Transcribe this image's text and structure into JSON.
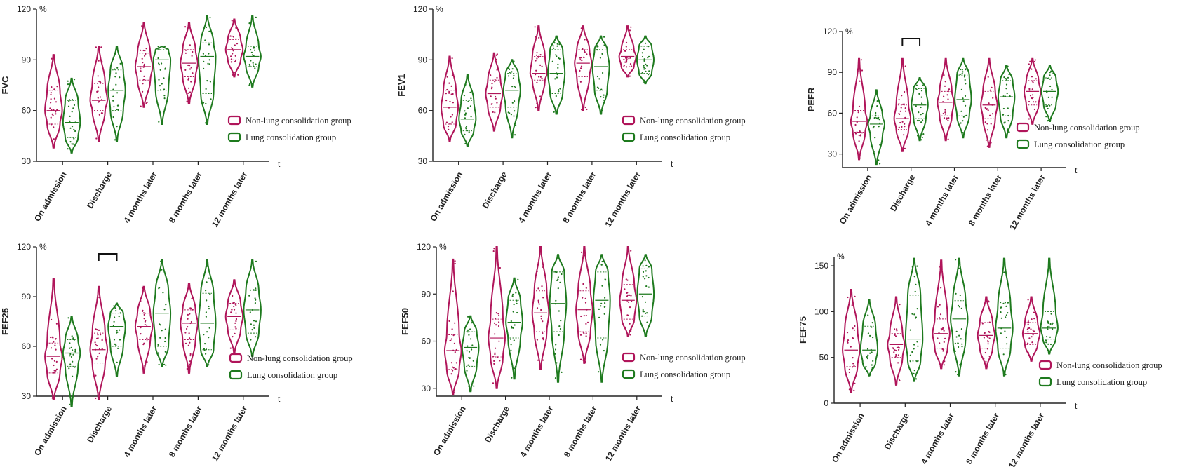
{
  "legend": {
    "series_a": "Non-lung consolidation group",
    "series_b": "Lung consolidation group"
  },
  "colors": {
    "series_a": "#b0155a",
    "series_b": "#1e7a1e"
  },
  "axis_t_label": "t",
  "unit_label": "%",
  "chart_data": [
    {
      "type": "violin",
      "ylabel": "FVC",
      "ylim": [
        30,
        120
      ],
      "yticks": [
        30,
        60,
        90,
        120
      ],
      "categories": [
        "On admission",
        "Discharge",
        "4 months later",
        "8 months later",
        "12 months later"
      ],
      "series": [
        {
          "name": "Non-lung consolidation group",
          "min": [
            38,
            42,
            62,
            64,
            80
          ],
          "q1": [
            52,
            60,
            78,
            80,
            90
          ],
          "median": [
            60,
            66,
            86,
            88,
            96
          ],
          "q3": [
            72,
            76,
            94,
            96,
            102
          ],
          "max": [
            93,
            98,
            112,
            112,
            114
          ]
        },
        {
          "name": "Lung consolidation group",
          "min": [
            35,
            42,
            52,
            52,
            74
          ],
          "q1": [
            44,
            60,
            72,
            70,
            86
          ],
          "median": [
            53,
            72,
            90,
            92,
            92
          ],
          "q3": [
            66,
            84,
            96,
            100,
            98
          ],
          "max": [
            79,
            98,
            98,
            116,
            116
          ]
        }
      ],
      "significance": []
    },
    {
      "type": "violin",
      "ylabel": "FEV1",
      "ylim": [
        30,
        120
      ],
      "yticks": [
        30,
        60,
        90,
        120
      ],
      "categories": [
        "On admission",
        "Discharge",
        "4 months later",
        "8 months later",
        "12 months later"
      ],
      "series": [
        {
          "name": "Non-lung consolidation group",
          "min": [
            42,
            48,
            60,
            60,
            80
          ],
          "q1": [
            52,
            62,
            78,
            80,
            86
          ],
          "median": [
            62,
            70,
            82,
            88,
            92
          ],
          "q3": [
            72,
            78,
            92,
            96,
            96
          ],
          "max": [
            92,
            94,
            110,
            110,
            110
          ]
        },
        {
          "name": "Lung consolidation group",
          "min": [
            39,
            44,
            58,
            58,
            76
          ],
          "q1": [
            48,
            62,
            70,
            72,
            82
          ],
          "median": [
            55,
            72,
            82,
            86,
            90
          ],
          "q3": [
            66,
            82,
            96,
            96,
            98
          ],
          "max": [
            81,
            90,
            104,
            104,
            104
          ]
        }
      ],
      "significance": []
    },
    {
      "type": "violin",
      "ylabel": "PEFR",
      "ylim": [
        20,
        120
      ],
      "yticks": [
        30,
        60,
        90,
        120
      ],
      "categories": [
        "On admission",
        "Discharge",
        "4 months later",
        "8 months later",
        "12 months later"
      ],
      "series": [
        {
          "name": "Non-lung consolidation group",
          "min": [
            26,
            32,
            40,
            35,
            52
          ],
          "q1": [
            46,
            48,
            58,
            56,
            66
          ],
          "median": [
            54,
            56,
            68,
            66,
            76
          ],
          "q3": [
            62,
            66,
            76,
            76,
            84
          ],
          "max": [
            100,
            100,
            100,
            100,
            100
          ]
        },
        {
          "name": "Lung consolidation group",
          "min": [
            22,
            40,
            42,
            42,
            54
          ],
          "q1": [
            44,
            56,
            58,
            58,
            66
          ],
          "median": [
            52,
            66,
            70,
            72,
            76
          ],
          "q3": [
            58,
            78,
            88,
            84,
            86
          ],
          "max": [
            77,
            86,
            100,
            95,
            95
          ]
        }
      ],
      "significance": [
        1
      ]
    },
    {
      "type": "violin",
      "ylabel": "FEF25",
      "ylim": [
        30,
        120
      ],
      "yticks": [
        30,
        60,
        90,
        120
      ],
      "categories": [
        "On admission",
        "Discharge",
        "4 months later",
        "8 months later",
        "12 months later"
      ],
      "series": [
        {
          "name": "Non-lung consolidation group",
          "min": [
            28,
            28,
            44,
            44,
            56
          ],
          "q1": [
            44,
            50,
            64,
            64,
            70
          ],
          "median": [
            54,
            58,
            72,
            74,
            78
          ],
          "q3": [
            62,
            68,
            80,
            82,
            86
          ],
          "max": [
            101,
            96,
            96,
            98,
            100
          ]
        },
        {
          "name": "Lung consolidation group",
          "min": [
            24,
            42,
            48,
            48,
            54
          ],
          "q1": [
            48,
            60,
            60,
            58,
            68
          ],
          "median": [
            56,
            72,
            80,
            74,
            82
          ],
          "q3": [
            64,
            80,
            94,
            92,
            94
          ],
          "max": [
            78,
            86,
            112,
            112,
            112
          ]
        }
      ],
      "significance": [
        1
      ]
    },
    {
      "type": "violin",
      "ylabel": "FEF50",
      "ylim": [
        25,
        120
      ],
      "yticks": [
        30,
        60,
        90,
        120
      ],
      "categories": [
        "On admission",
        "Discharge",
        "4 months later",
        "8 months later",
        "12 months later"
      ],
      "series": [
        {
          "name": "Non-lung consolidation group",
          "min": [
            26,
            30,
            42,
            46,
            63
          ],
          "q1": [
            42,
            50,
            66,
            66,
            74
          ],
          "median": [
            54,
            62,
            78,
            80,
            86
          ],
          "q3": [
            64,
            74,
            92,
            92,
            96
          ],
          "max": [
            112,
            120,
            120,
            120,
            120
          ]
        },
        {
          "name": "Lung consolidation group",
          "min": [
            28,
            36,
            34,
            34,
            63
          ],
          "q1": [
            44,
            62,
            66,
            62,
            76
          ],
          "median": [
            56,
            72,
            84,
            86,
            90
          ],
          "q3": [
            66,
            86,
            104,
            104,
            106
          ],
          "max": [
            76,
            100,
            115,
            115,
            115
          ]
        }
      ],
      "significance": []
    },
    {
      "type": "violin",
      "ylabel": "FEF75",
      "ylim": [
        0,
        160
      ],
      "yticks": [
        0,
        50,
        100,
        150
      ],
      "categories": [
        "On admission",
        "Discharge",
        "4 months later",
        "8 months later",
        "12 months later"
      ],
      "series": [
        {
          "name": "Non-lung consolidation group",
          "min": [
            12,
            20,
            38,
            38,
            46
          ],
          "q1": [
            40,
            50,
            60,
            60,
            64
          ],
          "median": [
            58,
            64,
            76,
            74,
            76
          ],
          "q3": [
            80,
            76,
            92,
            88,
            88
          ],
          "max": [
            124,
            116,
            156,
            116,
            116
          ]
        },
        {
          "name": "Lung consolidation group",
          "min": [
            30,
            24,
            30,
            30,
            54
          ],
          "q1": [
            44,
            46,
            70,
            60,
            70
          ],
          "median": [
            58,
            70,
            92,
            82,
            82
          ],
          "q3": [
            84,
            118,
            112,
            106,
            100
          ],
          "max": [
            113,
            158,
            158,
            158,
            158
          ]
        }
      ],
      "significance": []
    }
  ]
}
